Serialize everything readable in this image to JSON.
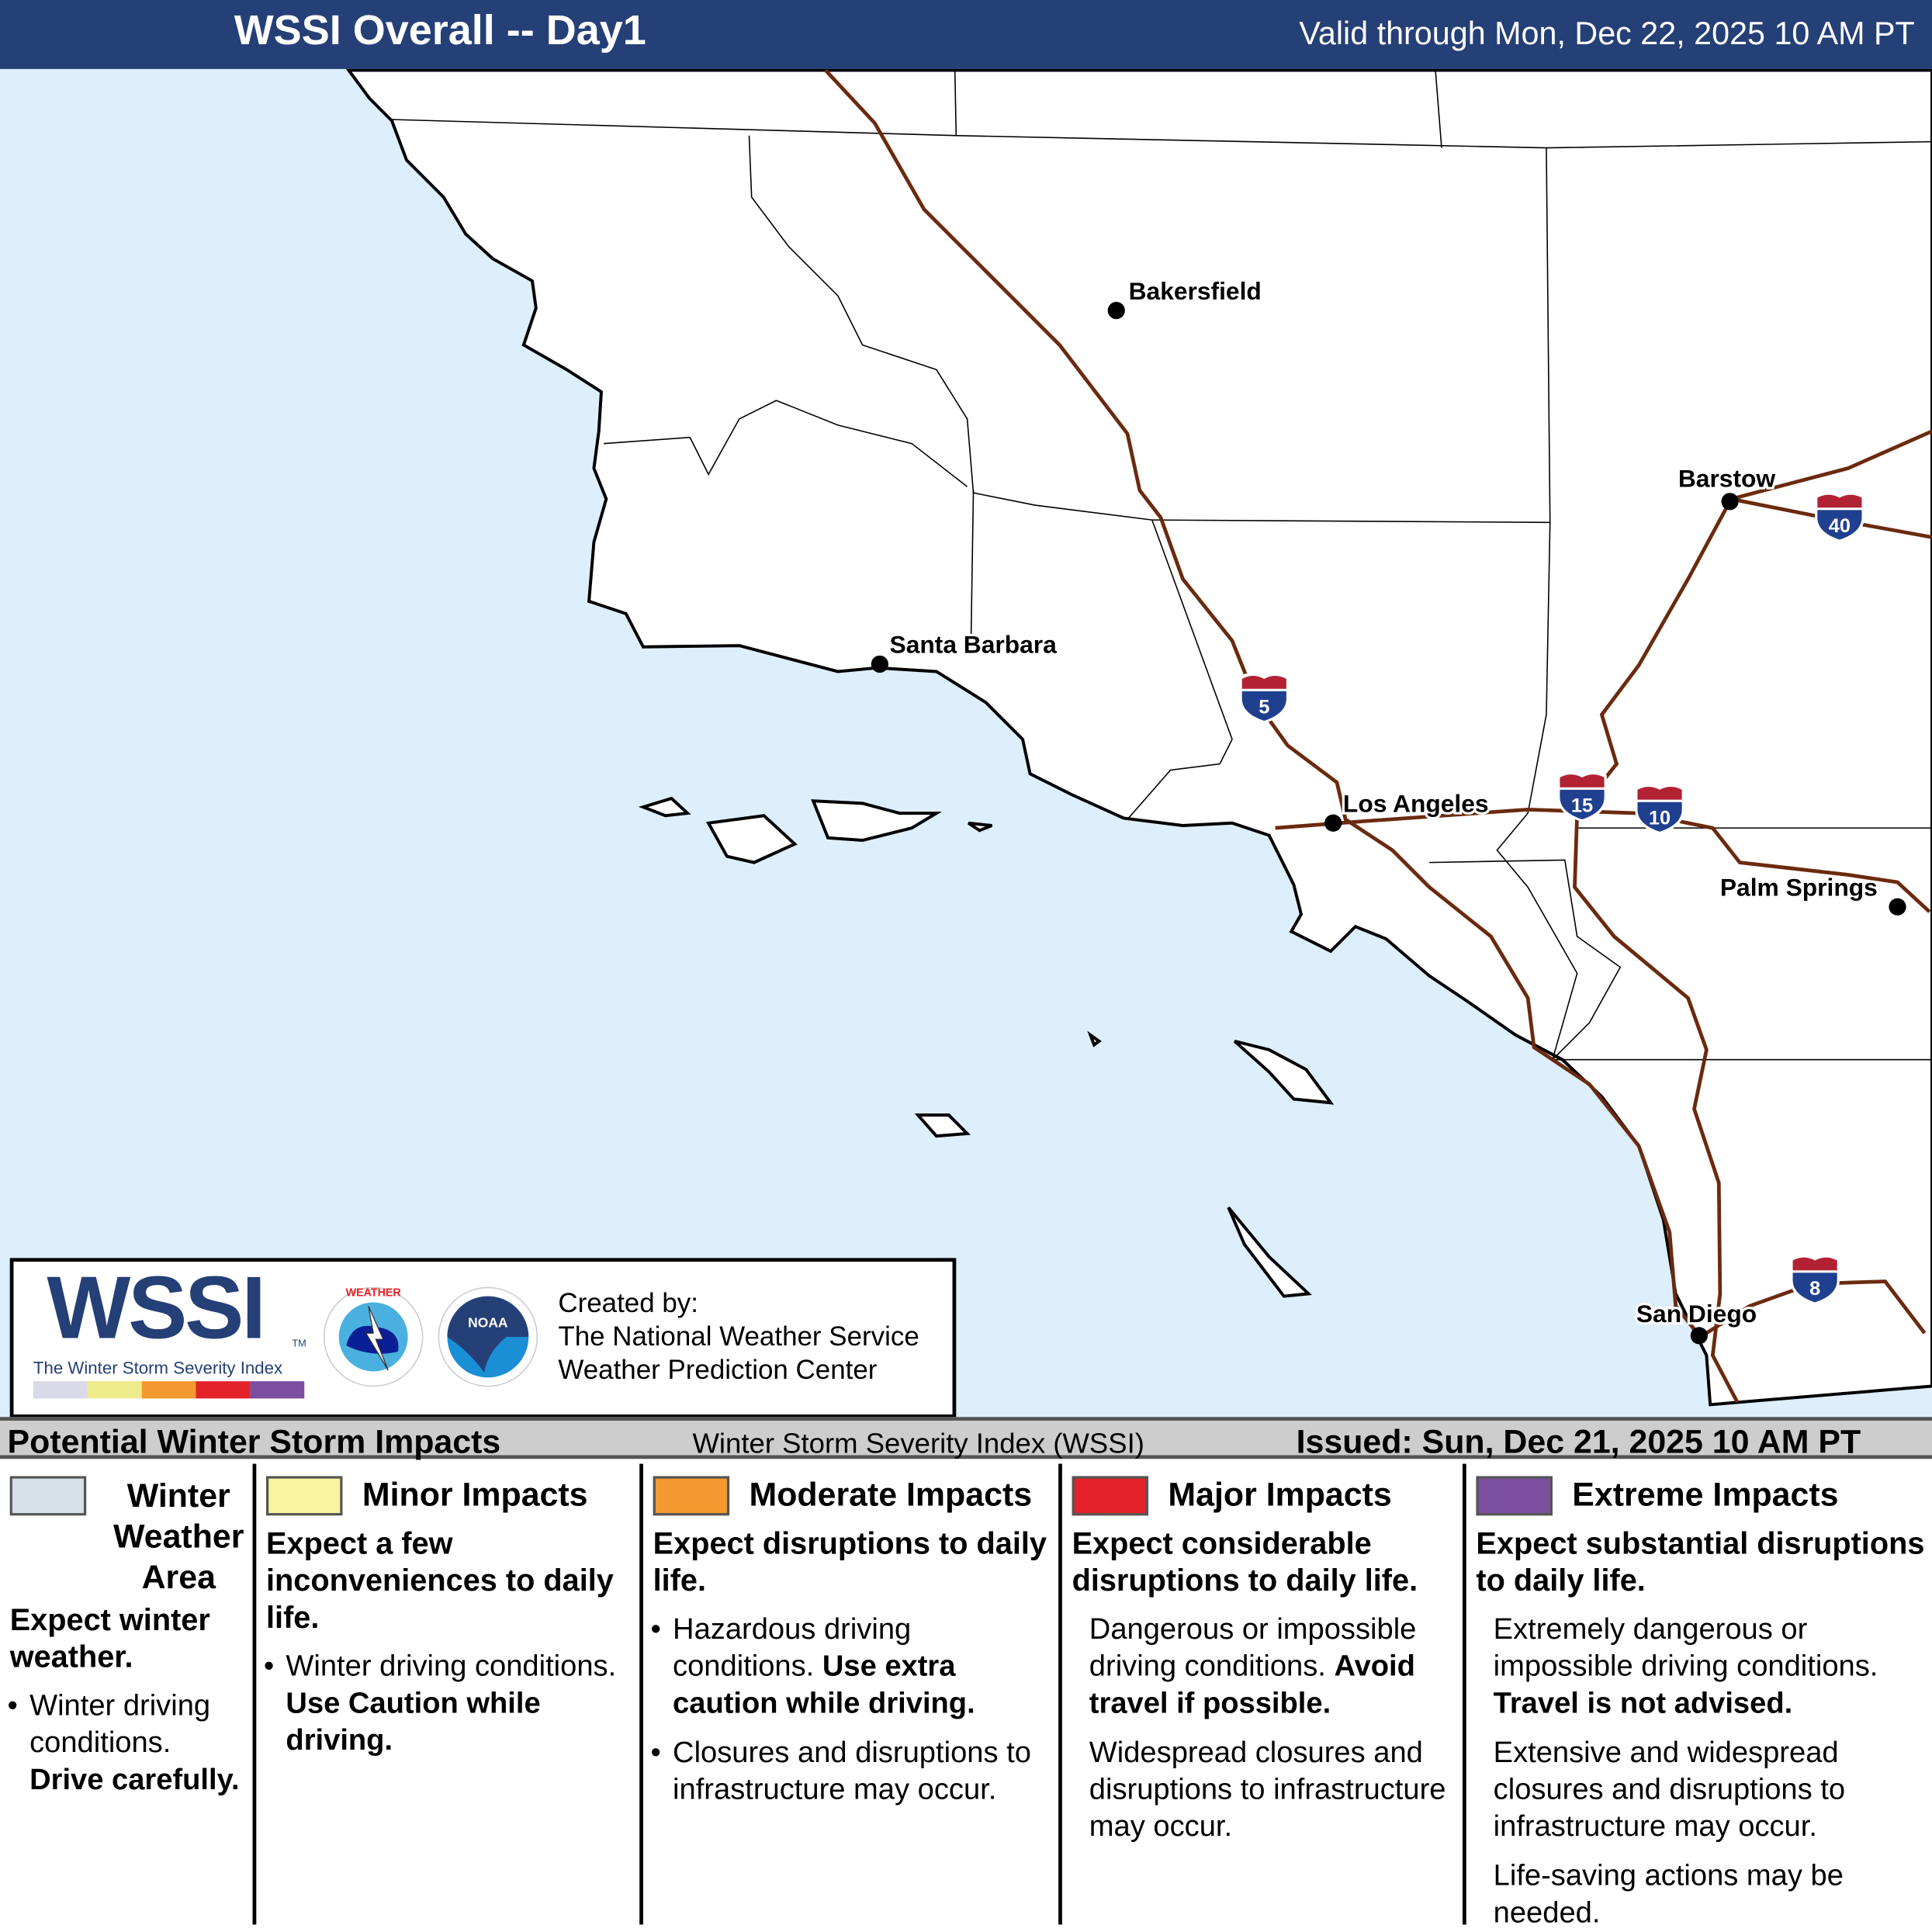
{
  "header": {
    "title": "WSSI Overall -- Day1",
    "valid": "Valid through Mon, Dec 22, 2025 10 AM PT",
    "bg_color": "#253f77"
  },
  "map": {
    "ocean_color": "#ddeefc",
    "land_color": "#ffffff",
    "interstate_color": "#6b2a0e",
    "cities": [
      {
        "name": "Bakersfield"
      },
      {
        "name": "Santa Barbara"
      },
      {
        "name": "Los Angeles"
      },
      {
        "name": "Barstow"
      },
      {
        "name": "Palm Springs"
      },
      {
        "name": "San Diego"
      }
    ],
    "interstates": [
      {
        "number": "5"
      },
      {
        "number": "15"
      },
      {
        "number": "10"
      },
      {
        "number": "40"
      },
      {
        "number": "8"
      }
    ]
  },
  "logo": {
    "wssi": "WSSI",
    "tm": "TM",
    "subtitle": "The Winter Storm Severity Index",
    "nws_text": "NATIONAL WEATHER SERVICE",
    "noaa_text": "NOAA",
    "created_by": "Created by:",
    "line1": "The National Weather Service",
    "line2": "Weather Prediction Center",
    "bar_colors": [
      "#d9d9e8",
      "#eeeb8c",
      "#f4992f",
      "#e3222a",
      "#7b4ea0"
    ]
  },
  "legend_bar": {
    "left": "Potential Winter Storm Impacts",
    "middle": "Winter Storm Severity Index (WSSI)",
    "right": "Issued: Sun, Dec 21, 2025 10 AM PT"
  },
  "legend": [
    {
      "level": "Winter Weather Area",
      "color": "#d6e0e8",
      "headline": "Expect winter weather.",
      "bullets": [
        {
          "text": "Winter driving conditions. ",
          "bold": "Drive carefully."
        }
      ]
    },
    {
      "level": "Minor Impacts",
      "color": "#f8f4a0",
      "headline": "Expect a few inconveniences to daily life.",
      "bullets": [
        {
          "text": "Winter driving conditions. ",
          "bold": "Use Caution while driving."
        }
      ]
    },
    {
      "level": "Moderate Impacts",
      "color": "#f4992f",
      "headline": "Expect disruptions to daily life.",
      "bullets": [
        {
          "text": "Hazardous driving conditions. ",
          "bold": "Use extra caution while driving."
        },
        {
          "text": "Closures and disruptions to infrastructure may occur.",
          "bold": ""
        }
      ]
    },
    {
      "level": "Major Impacts",
      "color": "#e3222a",
      "headline": "Expect considerable disruptions to daily life.",
      "bullets": [
        {
          "text": "Dangerous or impossible driving conditions. ",
          "bold": "Avoid travel if possible."
        },
        {
          "text": "Widespread closures and disruptions to infrastructure may occur.",
          "bold": ""
        }
      ]
    },
    {
      "level": "Extreme Impacts",
      "color": "#7b4ea0",
      "headline": "Expect substantial disruptions to daily life.",
      "bullets": [
        {
          "text": "Extremely dangerous or impossible driving conditions. ",
          "bold": "Travel is not advised."
        },
        {
          "text": "Extensive and widespread closures and disruptions to infrastructure may occur.",
          "bold": ""
        },
        {
          "text": "Life-saving actions may be needed.",
          "bold": ""
        }
      ]
    }
  ]
}
